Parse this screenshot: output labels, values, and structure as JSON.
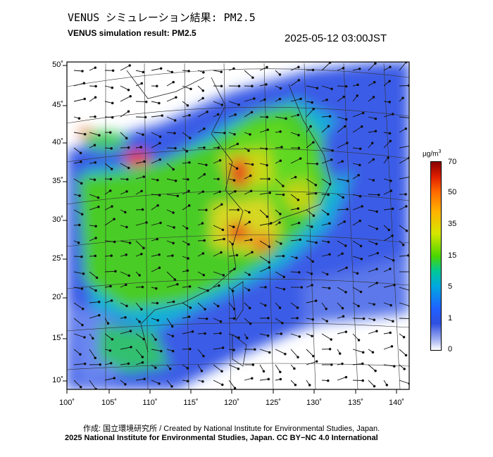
{
  "title_jp": "VENUS シミュレーション結果: PM2.5",
  "title_en": "VENUS simulation result: PM2.5",
  "datetime": "2025-05-12 03:00JST",
  "colorbar": {
    "unit_base": "µg/m",
    "unit_exp": "3",
    "labels": [
      "70",
      "50",
      "35",
      "15",
      "5",
      "1",
      "0"
    ]
  },
  "lat_labels": [
    "50˚",
    "45˚",
    "40˚",
    "35˚",
    "30˚",
    "25˚",
    "20˚",
    "15˚",
    "10˚"
  ],
  "lon_labels": [
    "100˚",
    "105˚",
    "110˚",
    "115˚",
    "120˚",
    "125˚",
    "130˚",
    "135˚",
    "140˚"
  ],
  "footer_jp": "作成: 国立環境研究所 / Created by National Institute for Environmental Studies, Japan.",
  "footer_copyright": "2025 National Institute for Environmental Studies, Japan. CC BY−NC 4.0 International",
  "colors": {
    "ocean_low": "#3c5ee8",
    "land_mid": "#4ccc2a",
    "hotspot": "#e8301a",
    "moderate": "#d8d820"
  }
}
